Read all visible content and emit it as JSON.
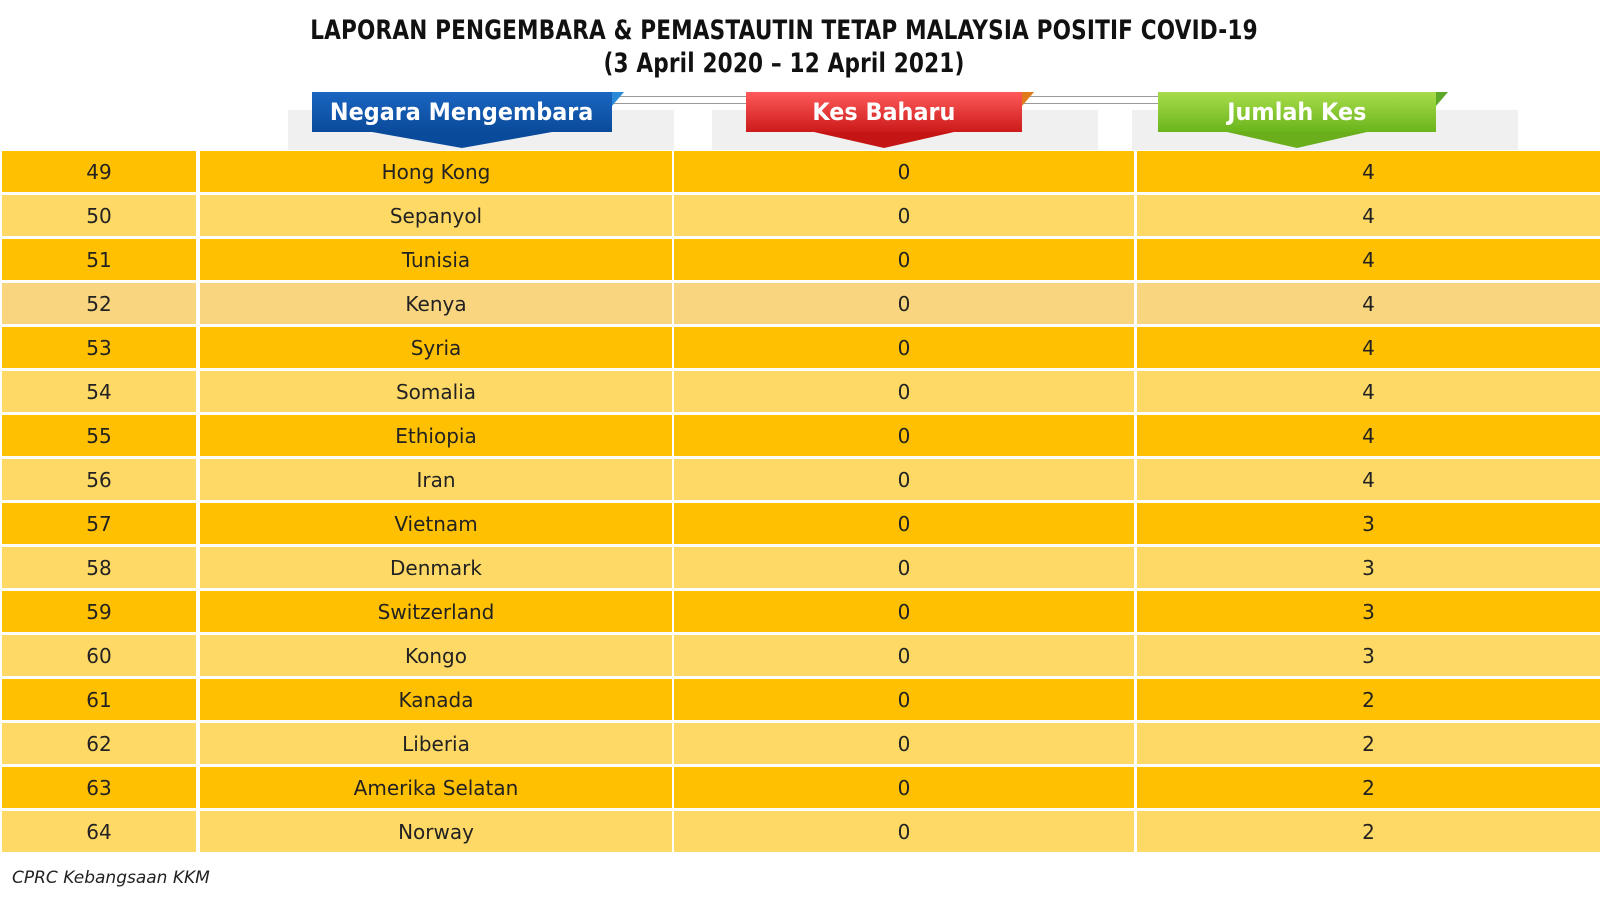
{
  "title": {
    "line1": "LAPORAN PENGEMBARA & PEMASTAUTIN TETAP MALAYSIA POSITIF COVID-19",
    "line2": "(3 April 2020 – 12 April 2021)"
  },
  "headers": {
    "country": "Negara Mengembara",
    "new_cases": "Kes Baharu",
    "total_cases": "Jumlah Kes"
  },
  "colors": {
    "row_dark": "#fec000",
    "row_light": "#ffd966",
    "header_blue": "#0a4a9a",
    "header_red": "#cc1a1a",
    "header_green": "#6ab51c"
  },
  "rows": [
    {
      "no": "49",
      "country": "Hong Kong",
      "new": "0",
      "total": "4"
    },
    {
      "no": "50",
      "country": "Sepanyol",
      "new": "0",
      "total": "4"
    },
    {
      "no": "51",
      "country": "Tunisia",
      "new": "0",
      "total": "4"
    },
    {
      "no": "52",
      "country": "Kenya",
      "new": "0",
      "total": "4"
    },
    {
      "no": "53",
      "country": "Syria",
      "new": "0",
      "total": "4"
    },
    {
      "no": "54",
      "country": "Somalia",
      "new": "0",
      "total": "4"
    },
    {
      "no": "55",
      "country": "Ethiopia",
      "new": "0",
      "total": "4"
    },
    {
      "no": "56",
      "country": "Iran",
      "new": "0",
      "total": "4"
    },
    {
      "no": "57",
      "country": "Vietnam",
      "new": "0",
      "total": "3"
    },
    {
      "no": "58",
      "country": "Denmark",
      "new": "0",
      "total": "3"
    },
    {
      "no": "59",
      "country": "Switzerland",
      "new": "0",
      "total": "3"
    },
    {
      "no": "60",
      "country": "Kongo",
      "new": "0",
      "total": "3"
    },
    {
      "no": "61",
      "country": "Kanada",
      "new": "0",
      "total": "2"
    },
    {
      "no": "62",
      "country": "Liberia",
      "new": "0",
      "total": "2"
    },
    {
      "no": "63",
      "country": "Amerika Selatan",
      "new": "0",
      "total": "2"
    },
    {
      "no": "64",
      "country": "Norway",
      "new": "0",
      "total": "2"
    }
  ],
  "footer": "CPRC Kebangsaan KKM"
}
